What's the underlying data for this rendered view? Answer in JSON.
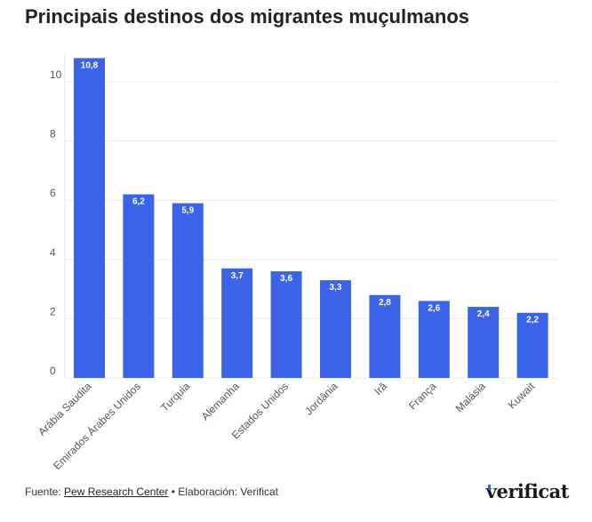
{
  "chart_data": {
    "type": "bar",
    "title": "Principais destinos dos migrantes muçulmanos",
    "xlabel": "",
    "ylabel": "",
    "ylim": [
      0,
      11
    ],
    "yticks": [
      0,
      2,
      4,
      6,
      8,
      10
    ],
    "grid": true,
    "categories": [
      "Arábia Saudita",
      "Emirados Árabes Unidos",
      "Turquia",
      "Alemanha",
      "Estados Unidos",
      "Jordânia",
      "Irã",
      "França",
      "Malásia",
      "Kuwait"
    ],
    "values": [
      10.8,
      6.2,
      5.9,
      3.7,
      3.6,
      3.3,
      2.8,
      2.6,
      2.4,
      2.2
    ],
    "data_labels": [
      "10,8",
      "6,2",
      "5,9",
      "3,7",
      "3,6",
      "3,3",
      "2,8",
      "2,6",
      "2,4",
      "2,2"
    ],
    "bar_color": "#3b63e8"
  },
  "footer": {
    "source_prefix": "Fuente: ",
    "source_link": "Pew Research Center",
    "credit": " • Elaboración: Verificat"
  },
  "logo": "verificat"
}
